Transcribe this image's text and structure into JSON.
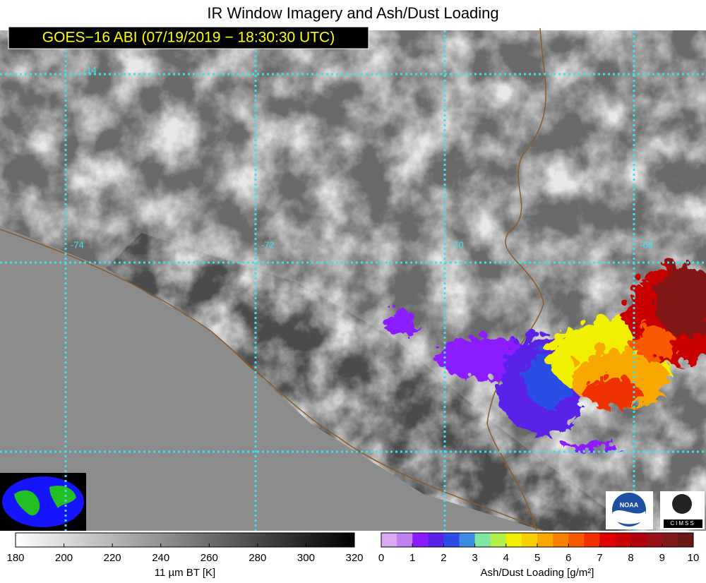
{
  "title": "IR Window Imagery and Ash/Dust Loading",
  "subtitle": "GOES−16 ABI (07/19/2019 − 18:30:30 UTC)",
  "grid_labels": [
    "-14",
    "-74",
    "-72",
    "-70",
    "-68"
  ],
  "colorbars": [
    {
      "label": "11 µm BT [K]",
      "lim": [
        180,
        320
      ],
      "ticks": [
        180,
        200,
        220,
        240,
        260,
        280,
        300,
        320
      ],
      "colors": [
        "#ffffff",
        "#000000"
      ]
    },
    {
      "label": "Ash/Dust Loading [g/m²]",
      "lim": [
        0,
        10
      ],
      "ticks": [
        0,
        1,
        2,
        3,
        4,
        5,
        6,
        7,
        8,
        9,
        10
      ],
      "colors": [
        "#dcaaf5",
        "#c080f0",
        "#8a1aff",
        "#5a22e8",
        "#2b4de6",
        "#3c8ce6",
        "#7ee8a0",
        "#b3f04a",
        "#f0f000",
        "#f8d000",
        "#f8a800",
        "#f88000",
        "#f85800",
        "#f03000",
        "#e00000",
        "#c80000",
        "#b00010",
        "#981018",
        "#801818",
        "#6a1818"
      ]
    }
  ],
  "logos": [
    "NOAA",
    "CIMSS"
  ]
}
